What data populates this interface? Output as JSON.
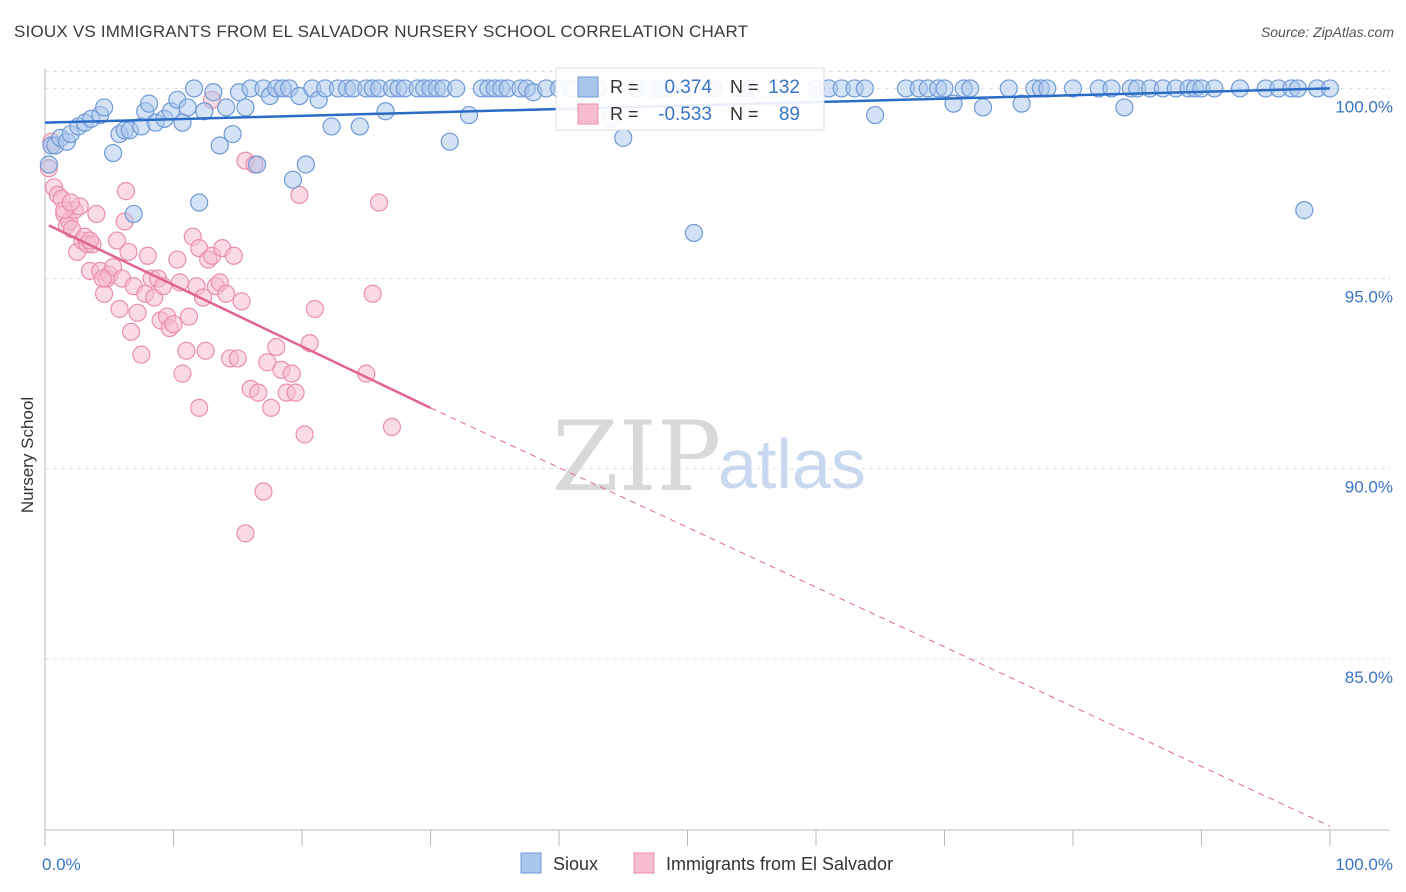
{
  "title": "SIOUX VS IMMIGRANTS FROM EL SALVADOR NURSERY SCHOOL CORRELATION CHART",
  "source": "Source: ZipAtlas.com",
  "watermark": {
    "zip": "ZIP",
    "atlas": "atlas"
  },
  "colors": {
    "blue_fill": "#a9c6ec",
    "blue_stroke": "#6f9ad6",
    "blue_line": "#2a6cc6",
    "pink_fill": "#f6bccd",
    "pink_stroke": "#ea8fab",
    "pink_line": "#e0668f",
    "tick_text": "#3a74c4",
    "grid": "#dddddd"
  },
  "chart_data": {
    "type": "scatter",
    "title": "SIOUX VS IMMIGRANTS FROM EL SALVADOR NURSERY SCHOOL CORRELATION CHART",
    "xlabel": "",
    "ylabel": "Nursery School",
    "xlim": [
      0,
      100
    ],
    "ylim": [
      80.5,
      100.8
    ],
    "x_tick_labels": [
      {
        "value": 0,
        "label": "0.0%"
      },
      {
        "value": 100,
        "label": "100.0%"
      }
    ],
    "y_ticks": [
      {
        "value": 100,
        "label": "100.0%"
      },
      {
        "value": 95,
        "label": "95.0%"
      },
      {
        "value": 90,
        "label": "90.0%"
      },
      {
        "value": 85,
        "label": "85.0%"
      }
    ],
    "grid": true,
    "legend": {
      "placement": "top-center",
      "entries": [
        {
          "r_label": "R =",
          "r_value": "0.374",
          "n_label": "N =",
          "n_value": "132"
        },
        {
          "r_label": "R =",
          "r_value": "-0.533",
          "n_label": "N =",
          "n_value": "89"
        }
      ]
    },
    "bottom_legend": [
      "Sioux",
      "Immigrants from El Salvador"
    ],
    "series": [
      {
        "name": "Sioux",
        "trend": {
          "x": [
            0,
            100
          ],
          "y": [
            99.1,
            100.0
          ]
        },
        "points": [
          [
            0.3,
            98.0
          ],
          [
            0.5,
            98.5
          ],
          [
            0.8,
            98.5
          ],
          [
            1.2,
            98.7
          ],
          [
            1.7,
            98.6
          ],
          [
            2.0,
            98.8
          ],
          [
            2.6,
            99.0
          ],
          [
            3.1,
            99.1
          ],
          [
            3.6,
            99.2
          ],
          [
            4.3,
            99.3
          ],
          [
            4.6,
            99.5
          ],
          [
            5.3,
            98.3
          ],
          [
            5.8,
            98.8
          ],
          [
            6.2,
            98.9
          ],
          [
            6.6,
            98.9
          ],
          [
            6.9,
            96.7
          ],
          [
            7.5,
            99.0
          ],
          [
            7.8,
            99.4
          ],
          [
            8.1,
            99.6
          ],
          [
            8.6,
            99.1
          ],
          [
            9.3,
            99.2
          ],
          [
            9.8,
            99.4
          ],
          [
            10.3,
            99.7
          ],
          [
            10.7,
            99.1
          ],
          [
            11.1,
            99.5
          ],
          [
            11.6,
            100.0
          ],
          [
            12.0,
            97.0
          ],
          [
            12.4,
            99.4
          ],
          [
            13.1,
            99.9
          ],
          [
            13.6,
            98.5
          ],
          [
            14.1,
            99.5
          ],
          [
            14.6,
            98.8
          ],
          [
            15.1,
            99.9
          ],
          [
            15.6,
            99.5
          ],
          [
            16.0,
            100.0
          ],
          [
            16.5,
            98.0
          ],
          [
            17.0,
            100.0
          ],
          [
            17.5,
            99.8
          ],
          [
            18.0,
            100.0
          ],
          [
            18.5,
            100.0
          ],
          [
            19.0,
            100.0
          ],
          [
            19.3,
            97.6
          ],
          [
            19.8,
            99.8
          ],
          [
            20.3,
            98.0
          ],
          [
            20.8,
            100.0
          ],
          [
            21.3,
            99.7
          ],
          [
            21.8,
            100.0
          ],
          [
            22.3,
            99.0
          ],
          [
            22.8,
            100.0
          ],
          [
            23.5,
            100.0
          ],
          [
            24.0,
            100.0
          ],
          [
            24.5,
            99.0
          ],
          [
            25.0,
            100.0
          ],
          [
            25.5,
            100.0
          ],
          [
            26.0,
            100.0
          ],
          [
            26.5,
            99.4
          ],
          [
            27.0,
            100.0
          ],
          [
            27.5,
            100.0
          ],
          [
            28.0,
            100.0
          ],
          [
            29.0,
            100.0
          ],
          [
            29.5,
            100.0
          ],
          [
            30.0,
            100.0
          ],
          [
            30.5,
            100.0
          ],
          [
            31.0,
            100.0
          ],
          [
            31.5,
            98.6
          ],
          [
            32.0,
            100.0
          ],
          [
            33.0,
            99.3
          ],
          [
            34.0,
            100.0
          ],
          [
            34.5,
            100.0
          ],
          [
            35.0,
            100.0
          ],
          [
            35.5,
            100.0
          ],
          [
            36.0,
            100.0
          ],
          [
            37.0,
            100.0
          ],
          [
            37.5,
            100.0
          ],
          [
            38.0,
            99.9
          ],
          [
            39.0,
            100.0
          ],
          [
            40.0,
            100.0
          ],
          [
            41.0,
            100.0
          ],
          [
            42.0,
            99.5
          ],
          [
            43.0,
            100.0
          ],
          [
            44.0,
            99.2
          ],
          [
            45.0,
            98.7
          ],
          [
            46.0,
            100.0
          ],
          [
            47.0,
            100.0
          ],
          [
            48.0,
            100.0
          ],
          [
            48.5,
            100.0
          ],
          [
            50.0,
            100.0
          ],
          [
            50.5,
            96.2
          ],
          [
            52.0,
            100.0
          ],
          [
            54.0,
            100.0
          ],
          [
            55.0,
            100.0
          ],
          [
            57.0,
            100.0
          ],
          [
            60.0,
            100.0
          ],
          [
            61.0,
            100.0
          ],
          [
            62.0,
            100.0
          ],
          [
            63.0,
            100.0
          ],
          [
            63.8,
            100.0
          ],
          [
            64.6,
            99.3
          ],
          [
            67.0,
            100.0
          ],
          [
            68.0,
            100.0
          ],
          [
            68.7,
            100.0
          ],
          [
            69.5,
            100.0
          ],
          [
            70.0,
            100.0
          ],
          [
            70.7,
            99.6
          ],
          [
            71.5,
            100.0
          ],
          [
            72.0,
            100.0
          ],
          [
            73.0,
            99.5
          ],
          [
            75.0,
            100.0
          ],
          [
            76.0,
            99.6
          ],
          [
            77.0,
            100.0
          ],
          [
            77.5,
            100.0
          ],
          [
            78.0,
            100.0
          ],
          [
            80.0,
            100.0
          ],
          [
            82.0,
            100.0
          ],
          [
            83.0,
            100.0
          ],
          [
            84.0,
            99.5
          ],
          [
            84.5,
            100.0
          ],
          [
            85.0,
            100.0
          ],
          [
            86.0,
            100.0
          ],
          [
            87.0,
            100.0
          ],
          [
            88.0,
            100.0
          ],
          [
            89.0,
            100.0
          ],
          [
            89.5,
            100.0
          ],
          [
            90.0,
            100.0
          ],
          [
            91.0,
            100.0
          ],
          [
            93.0,
            100.0
          ],
          [
            95.0,
            100.0
          ],
          [
            96.0,
            100.0
          ],
          [
            97.0,
            100.0
          ],
          [
            97.5,
            100.0
          ],
          [
            98.0,
            96.8
          ],
          [
            99.0,
            100.0
          ],
          [
            100.0,
            100.0
          ]
        ]
      },
      {
        "name": "Immigrants from El Salvador",
        "trend": {
          "x": [
            0.3,
            30.0
          ],
          "y": [
            96.4,
            91.6
          ]
        },
        "trend_ext": {
          "x": [
            30.0,
            100.0
          ],
          "y": [
            91.6,
            80.6
          ]
        },
        "points": [
          [
            0.3,
            97.9
          ],
          [
            0.5,
            98.6
          ],
          [
            0.7,
            97.4
          ],
          [
            1.0,
            97.2
          ],
          [
            1.3,
            97.1
          ],
          [
            1.5,
            96.7
          ],
          [
            1.7,
            96.4
          ],
          [
            1.9,
            96.5
          ],
          [
            2.1,
            96.3
          ],
          [
            2.3,
            96.8
          ],
          [
            2.5,
            95.7
          ],
          [
            2.7,
            96.9
          ],
          [
            2.9,
            96.0
          ],
          [
            3.1,
            96.1
          ],
          [
            3.3,
            95.9
          ],
          [
            3.5,
            95.2
          ],
          [
            3.7,
            95.9
          ],
          [
            4.0,
            96.7
          ],
          [
            4.3,
            95.2
          ],
          [
            4.6,
            94.6
          ],
          [
            4.8,
            95.0
          ],
          [
            5.0,
            95.1
          ],
          [
            5.3,
            95.3
          ],
          [
            5.6,
            96.0
          ],
          [
            5.8,
            94.2
          ],
          [
            6.0,
            95.0
          ],
          [
            6.2,
            96.5
          ],
          [
            6.5,
            95.7
          ],
          [
            6.7,
            93.6
          ],
          [
            6.9,
            94.8
          ],
          [
            7.2,
            94.1
          ],
          [
            7.5,
            93.0
          ],
          [
            7.8,
            94.6
          ],
          [
            8.0,
            95.6
          ],
          [
            8.3,
            95.0
          ],
          [
            8.5,
            94.5
          ],
          [
            8.8,
            95.0
          ],
          [
            9.0,
            93.9
          ],
          [
            9.2,
            94.8
          ],
          [
            9.5,
            94.0
          ],
          [
            9.7,
            93.7
          ],
          [
            10.0,
            93.8
          ],
          [
            10.3,
            95.5
          ],
          [
            10.5,
            94.9
          ],
          [
            10.7,
            92.5
          ],
          [
            11.0,
            93.1
          ],
          [
            11.2,
            94.0
          ],
          [
            11.5,
            96.1
          ],
          [
            11.8,
            94.8
          ],
          [
            12.0,
            95.8
          ],
          [
            12.3,
            94.5
          ],
          [
            12.5,
            93.1
          ],
          [
            12.7,
            95.5
          ],
          [
            13.0,
            95.6
          ],
          [
            13.3,
            94.8
          ],
          [
            13.6,
            94.9
          ],
          [
            13.8,
            95.8
          ],
          [
            14.1,
            94.6
          ],
          [
            14.4,
            92.9
          ],
          [
            14.7,
            95.6
          ],
          [
            15.0,
            92.9
          ],
          [
            15.3,
            94.4
          ],
          [
            15.6,
            98.1
          ],
          [
            16.0,
            92.1
          ],
          [
            16.3,
            98.0
          ],
          [
            16.6,
            92.0
          ],
          [
            17.0,
            89.4
          ],
          [
            17.3,
            92.8
          ],
          [
            17.6,
            91.6
          ],
          [
            18.0,
            93.2
          ],
          [
            18.4,
            92.6
          ],
          [
            18.8,
            92.0
          ],
          [
            19.2,
            92.5
          ],
          [
            19.5,
            92.0
          ],
          [
            19.8,
            97.2
          ],
          [
            20.2,
            90.9
          ],
          [
            20.6,
            93.3
          ],
          [
            21.0,
            94.2
          ],
          [
            25.0,
            92.5
          ],
          [
            25.5,
            94.6
          ],
          [
            26.0,
            97.0
          ],
          [
            27.0,
            91.1
          ],
          [
            12.0,
            91.6
          ],
          [
            15.6,
            88.3
          ],
          [
            13.0,
            99.7
          ],
          [
            6.3,
            97.3
          ],
          [
            3.5,
            96.0
          ],
          [
            1.5,
            96.8
          ],
          [
            2.0,
            97.0
          ],
          [
            4.5,
            95.0
          ]
        ]
      }
    ]
  }
}
